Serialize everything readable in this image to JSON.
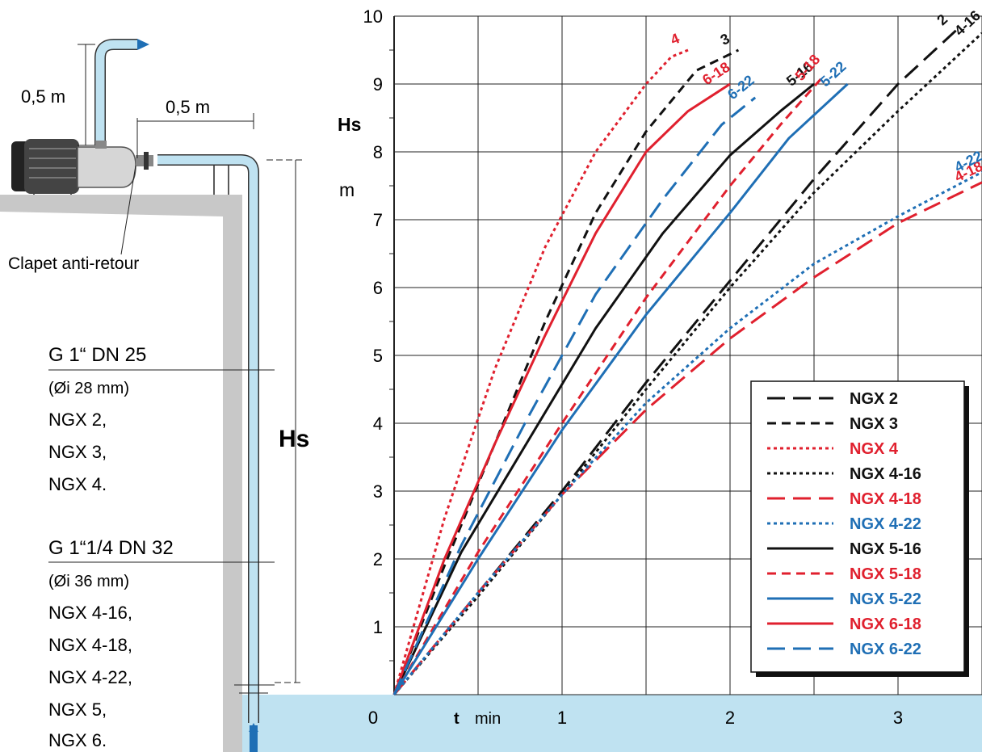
{
  "diagram": {
    "height_vertical_pipe": "0,5 m",
    "length_horizontal_pipe": "0,5 m",
    "check_valve": "Clapet anti-retour",
    "hs_label": "Hs",
    "pipe_spec_1": {
      "size": "G 1“ DN 25",
      "inner_diameter": "(Øi 28 mm)",
      "models": [
        "NGX 2,",
        "NGX 3,",
        "NGX 4."
      ]
    },
    "pipe_spec_2": {
      "size": "G 1“1/4 DN 32",
      "inner_diameter": "(Øi 36 mm)",
      "models": [
        "NGX 4-16,",
        "NGX 4-18,",
        "NGX 4-22,",
        "NGX 5,",
        "NGX 6."
      ]
    }
  },
  "chart_data": {
    "type": "line",
    "ylabel": "Hs",
    "yunit": "m",
    "xlabel": "t",
    "xunit": "min",
    "xlim": [
      0,
      3.5
    ],
    "ylim": [
      0,
      10
    ],
    "x_ticks": [
      "0",
      "1",
      "2",
      "3"
    ],
    "y_ticks": [
      "1",
      "2",
      "3",
      "4",
      "5",
      "6",
      "7",
      "8",
      "9",
      "10"
    ],
    "grid": true,
    "legend_position": "bottom-right",
    "colors": {
      "black": "#111111",
      "red": "#e0202e",
      "blue": "#1f6fb5",
      "water": "#bfe2f1"
    },
    "series": [
      {
        "name": "NGX 2",
        "curve_label": "2",
        "color": "#111111",
        "dash": "long",
        "points": [
          [
            0,
            0
          ],
          [
            0.5,
            1.5
          ],
          [
            1,
            3
          ],
          [
            1.5,
            4.6
          ],
          [
            2,
            6.1
          ],
          [
            2.5,
            7.6
          ],
          [
            3,
            9
          ],
          [
            3.35,
            9.8
          ]
        ]
      },
      {
        "name": "NGX 3",
        "curve_label": "3",
        "color": "#111111",
        "dash": "short",
        "points": [
          [
            0,
            0
          ],
          [
            0.3,
            1.9
          ],
          [
            0.6,
            3.7
          ],
          [
            0.9,
            5.5
          ],
          [
            1.2,
            7.1
          ],
          [
            1.5,
            8.3
          ],
          [
            1.8,
            9.2
          ],
          [
            2.05,
            9.5
          ]
        ]
      },
      {
        "name": "NGX 4",
        "curve_label": "4",
        "color": "#e0202e",
        "dash": "dot",
        "points": [
          [
            0,
            0
          ],
          [
            0.3,
            2.6
          ],
          [
            0.6,
            4.8
          ],
          [
            0.9,
            6.6
          ],
          [
            1.2,
            8.0
          ],
          [
            1.5,
            9.0
          ],
          [
            1.65,
            9.4
          ],
          [
            1.75,
            9.5
          ]
        ]
      },
      {
        "name": "NGX 4-16",
        "curve_label": "4-16",
        "color": "#111111",
        "dash": "dot",
        "points": [
          [
            0,
            0
          ],
          [
            0.5,
            1.45
          ],
          [
            1,
            2.95
          ],
          [
            1.5,
            4.5
          ],
          [
            2,
            6.0
          ],
          [
            2.5,
            7.4
          ],
          [
            3,
            8.6
          ],
          [
            3.5,
            9.75
          ]
        ]
      },
      {
        "name": "NGX 4-18",
        "curve_label": "4-18",
        "color": "#e0202e",
        "dash": "long",
        "points": [
          [
            0,
            0
          ],
          [
            0.5,
            1.5
          ],
          [
            1,
            2.95
          ],
          [
            1.5,
            4.2
          ],
          [
            2,
            5.25
          ],
          [
            2.5,
            6.15
          ],
          [
            3,
            6.95
          ],
          [
            3.5,
            7.55
          ]
        ]
      },
      {
        "name": "NGX 4-22",
        "curve_label": "4-22",
        "color": "#1f6fb5",
        "dash": "dot",
        "points": [
          [
            0,
            0
          ],
          [
            0.5,
            1.5
          ],
          [
            1,
            2.95
          ],
          [
            1.5,
            4.3
          ],
          [
            2,
            5.4
          ],
          [
            2.5,
            6.35
          ],
          [
            3,
            7.05
          ],
          [
            3.5,
            7.7
          ]
        ]
      },
      {
        "name": "NGX 5-16",
        "curve_label": "5-16",
        "color": "#111111",
        "dash": "solid",
        "points": [
          [
            0,
            0
          ],
          [
            0.4,
            2.1
          ],
          [
            0.8,
            3.75
          ],
          [
            1.2,
            5.4
          ],
          [
            1.6,
            6.8
          ],
          [
            2.0,
            7.95
          ],
          [
            2.3,
            8.6
          ],
          [
            2.5,
            9.0
          ]
        ]
      },
      {
        "name": "NGX 5-18",
        "curve_label": "5-18",
        "color": "#e0202e",
        "dash": "short",
        "points": [
          [
            0,
            0
          ],
          [
            0.5,
            2.1
          ],
          [
            1,
            4.0
          ],
          [
            1.5,
            5.85
          ],
          [
            2,
            7.5
          ],
          [
            2.3,
            8.4
          ],
          [
            2.55,
            9.1
          ]
        ]
      },
      {
        "name": "NGX 5-22",
        "curve_label": "5-22",
        "color": "#1f6fb5",
        "dash": "solid",
        "points": [
          [
            0,
            0
          ],
          [
            0.5,
            2.0
          ],
          [
            1,
            3.9
          ],
          [
            1.5,
            5.6
          ],
          [
            2,
            7.1
          ],
          [
            2.35,
            8.2
          ],
          [
            2.7,
            9.0
          ]
        ]
      },
      {
        "name": "NGX 6-18",
        "curve_label": "6-18",
        "color": "#e0202e",
        "dash": "solid",
        "points": [
          [
            0,
            0
          ],
          [
            0.3,
            2.0
          ],
          [
            0.6,
            3.7
          ],
          [
            0.9,
            5.3
          ],
          [
            1.2,
            6.8
          ],
          [
            1.5,
            8.0
          ],
          [
            1.75,
            8.6
          ],
          [
            2.0,
            9.0
          ]
        ]
      },
      {
        "name": "NGX 6-22",
        "curve_label": "6-22",
        "color": "#1f6fb5",
        "dash": "long",
        "points": [
          [
            0,
            0
          ],
          [
            0.4,
            2.2
          ],
          [
            0.8,
            4.1
          ],
          [
            1.2,
            5.9
          ],
          [
            1.6,
            7.3
          ],
          [
            1.95,
            8.4
          ],
          [
            2.15,
            8.8
          ]
        ]
      }
    ]
  }
}
